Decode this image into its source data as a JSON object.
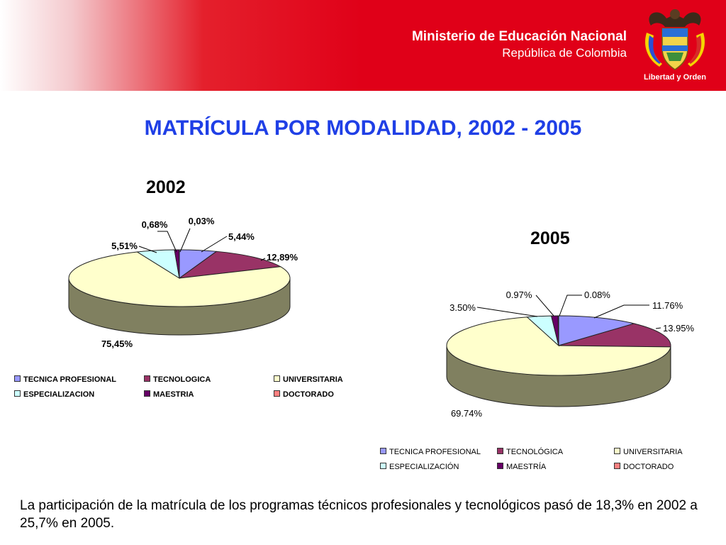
{
  "header": {
    "ministry_name": "Ministerio de Educación Nacional",
    "country": "República de Colombia",
    "seal_motto": "Libertad y Orden"
  },
  "slide_title": "MATRÍCULA POR MODALIDAD, 2002 - 2005",
  "caption": "La participación de la matrícula de los programas técnicos profesionales y tecnológicos pasó de 18,3% en 2002 a 25,7% en 2005.",
  "colors": {
    "tecnica": "#9999ff",
    "tecnologica": "#993366",
    "universitaria": "#ffffcc",
    "especializacion": "#ccffff",
    "maestria": "#660066",
    "doctorado": "#ff8080",
    "pie_side": "#808060"
  },
  "chart_data": [
    {
      "type": "pie",
      "title": "2002",
      "categories": [
        "TECNICA PROFESIONAL",
        "TECNOLOGICA",
        "UNIVERSITARIA",
        "ESPECIALIZACION",
        "MAESTRIA",
        "DOCTORADO"
      ],
      "values": [
        5.44,
        12.89,
        75.45,
        5.51,
        0.68,
        0.03
      ],
      "data_labels": [
        "5,44%",
        "12,89%",
        "75,45%",
        "5,51%",
        "0,68%",
        "0,03%"
      ],
      "legend": "bottom"
    },
    {
      "type": "pie",
      "title": "2005",
      "categories": [
        "TECNICA PROFESIONAL",
        "TECNOLÓGICA",
        "UNIVERSITARIA",
        "ESPECIALIZACIÓN",
        "MAESTRÍA",
        "DOCTORADO"
      ],
      "values": [
        11.76,
        13.95,
        69.74,
        3.5,
        0.97,
        0.08
      ],
      "data_labels": [
        "11.76%",
        "13.95%",
        "69.74%",
        "3.50%",
        "0.97%",
        "0.08%"
      ],
      "legend": "bottom"
    }
  ]
}
